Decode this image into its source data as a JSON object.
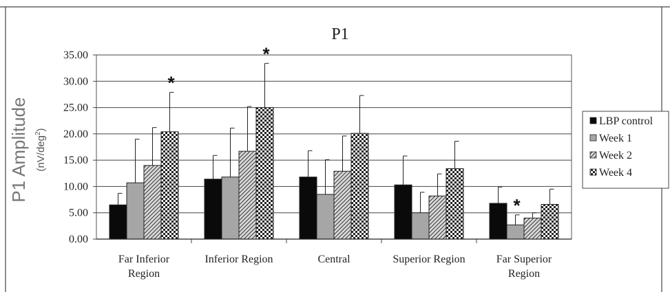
{
  "chart_data": {
    "type": "bar",
    "title": "P1",
    "ylabel": "P1 Amplitude",
    "ylabel_unit": "(nV/deg",
    "ylabel_unit_sup": "2",
    "ylabel_unit_end": ")",
    "ylim": [
      0,
      35
    ],
    "yticks": [
      "0.00",
      "5.00",
      "10.00",
      "15.00",
      "20.00",
      "25.00",
      "30.00",
      "35.00"
    ],
    "ytick_values": [
      0,
      5,
      10,
      15,
      20,
      25,
      30,
      35
    ],
    "grid": true,
    "legend_position": "right",
    "categories": [
      [
        "Far Inferior",
        "Region"
      ],
      [
        "Inferior Region"
      ],
      [
        "Central"
      ],
      [
        "Superior Region"
      ],
      [
        "Far Superior",
        "Region"
      ]
    ],
    "series": [
      {
        "name": "LBP control",
        "pattern": "solid-black",
        "values": [
          6.5,
          11.4,
          11.8,
          10.3,
          6.8
        ],
        "errors": [
          8.7,
          15.9,
          16.8,
          15.8,
          9.9
        ]
      },
      {
        "name": "Week 1",
        "pattern": "solid-gray",
        "values": [
          10.7,
          11.8,
          8.5,
          5.0,
          2.7
        ],
        "errors": [
          19.0,
          21.1,
          15.1,
          8.9,
          4.6
        ]
      },
      {
        "name": "Week 2",
        "pattern": "diagonal-hatch",
        "values": [
          14.0,
          16.7,
          12.9,
          8.2,
          4.0
        ],
        "errors": [
          21.2,
          25.2,
          19.6,
          12.4,
          5.0
        ]
      },
      {
        "name": "Week 4",
        "pattern": "checker",
        "values": [
          20.4,
          25.0,
          20.1,
          13.4,
          6.6
        ],
        "errors": [
          27.9,
          33.4,
          27.3,
          18.6,
          9.5
        ]
      }
    ],
    "significance": [
      {
        "category": 0,
        "series": 3,
        "label": "*"
      },
      {
        "category": 1,
        "series": 3,
        "label": "*"
      },
      {
        "category": 4,
        "series": 1,
        "label": "*"
      }
    ]
  }
}
